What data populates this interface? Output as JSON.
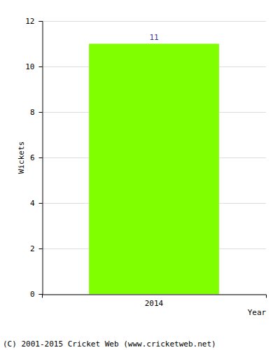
{
  "chart_data": {
    "type": "bar",
    "categories": [
      "2014"
    ],
    "values": [
      11
    ],
    "color": "#80ff00",
    "x_label": "Year",
    "y_label": "Wickets",
    "ylim": [
      0,
      12
    ],
    "yticks": [
      0,
      2,
      4,
      6,
      8,
      10,
      12
    ],
    "grid": true,
    "data_labels": true,
    "annotations": [
      "(C) 2001-2015 Cricket Web (www.cricketweb.net)"
    ]
  }
}
